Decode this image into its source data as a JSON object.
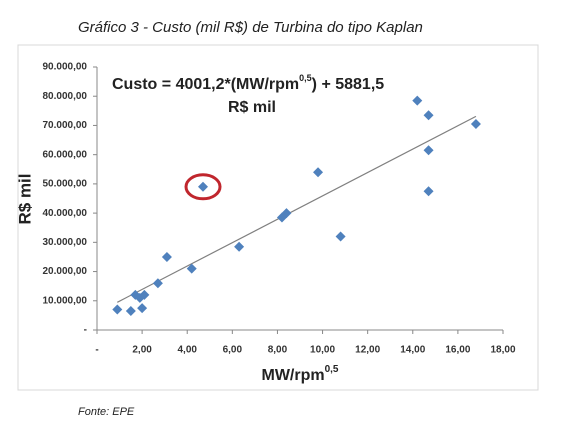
{
  "chart_data": {
    "type": "scatter",
    "title": "Gráfico 3 - Custo (mil R$) de Turbina do tipo Kaplan",
    "x_label": {
      "text": "MW/rpm",
      "superscript": "0,5"
    },
    "y_label": "R$ mil",
    "annotation": {
      "lines": [
        "Custo = 4001,2*(MW/rpm",
        "0,5",
        ") + 5881,5"
      ],
      "unit": "R$ mil"
    },
    "trendline": {
      "slope": 4001.2,
      "intercept": 5881.5,
      "color": "#808080"
    },
    "highlight": 9,
    "source": "Fonte: EPE",
    "series": [
      {
        "name": "Custo",
        "color": "#4f81bd",
        "x": [
          0.9,
          1.5,
          1.7,
          1.9,
          2.1,
          2.0,
          2.7,
          3.1,
          4.2,
          4.7,
          6.3,
          8.2,
          8.4,
          9.8,
          10.8,
          14.2,
          14.7,
          14.7,
          14.7,
          16.8
        ],
        "values": [
          7000,
          6500,
          12000,
          11000,
          12000,
          7500,
          16000,
          25000,
          21000,
          49000,
          28500,
          38500,
          40000,
          54000,
          32000,
          78500,
          73500,
          61500,
          47500,
          70500
        ]
      }
    ],
    "xlim": [
      0,
      18
    ],
    "xticks": [
      {
        "value": 0,
        "label": "-"
      },
      {
        "value": 2,
        "label": "2,00"
      },
      {
        "value": 4,
        "label": "4,00"
      },
      {
        "value": 6,
        "label": "6,00"
      },
      {
        "value": 8,
        "label": "8,00"
      },
      {
        "value": 10,
        "label": "10,00"
      },
      {
        "value": 12,
        "label": "12,00"
      },
      {
        "value": 14,
        "label": "14,00"
      },
      {
        "value": 16,
        "label": "16,00"
      },
      {
        "value": 18,
        "label": "18,00"
      }
    ],
    "ylim": [
      0,
      90000
    ],
    "yticks": [
      {
        "value": 0,
        "label": "-"
      },
      {
        "value": 10000,
        "label": "10.000,00"
      },
      {
        "value": 20000,
        "label": "20.000,00"
      },
      {
        "value": 30000,
        "label": "30.000,00"
      },
      {
        "value": 40000,
        "label": "40.000,00"
      },
      {
        "value": 50000,
        "label": "50.000,00"
      },
      {
        "value": 60000,
        "label": "60.000,00"
      },
      {
        "value": 70000,
        "label": "70.000,00"
      },
      {
        "value": 80000,
        "label": "80.000,00"
      },
      {
        "value": 90000,
        "label": "90.000,00"
      }
    ]
  }
}
